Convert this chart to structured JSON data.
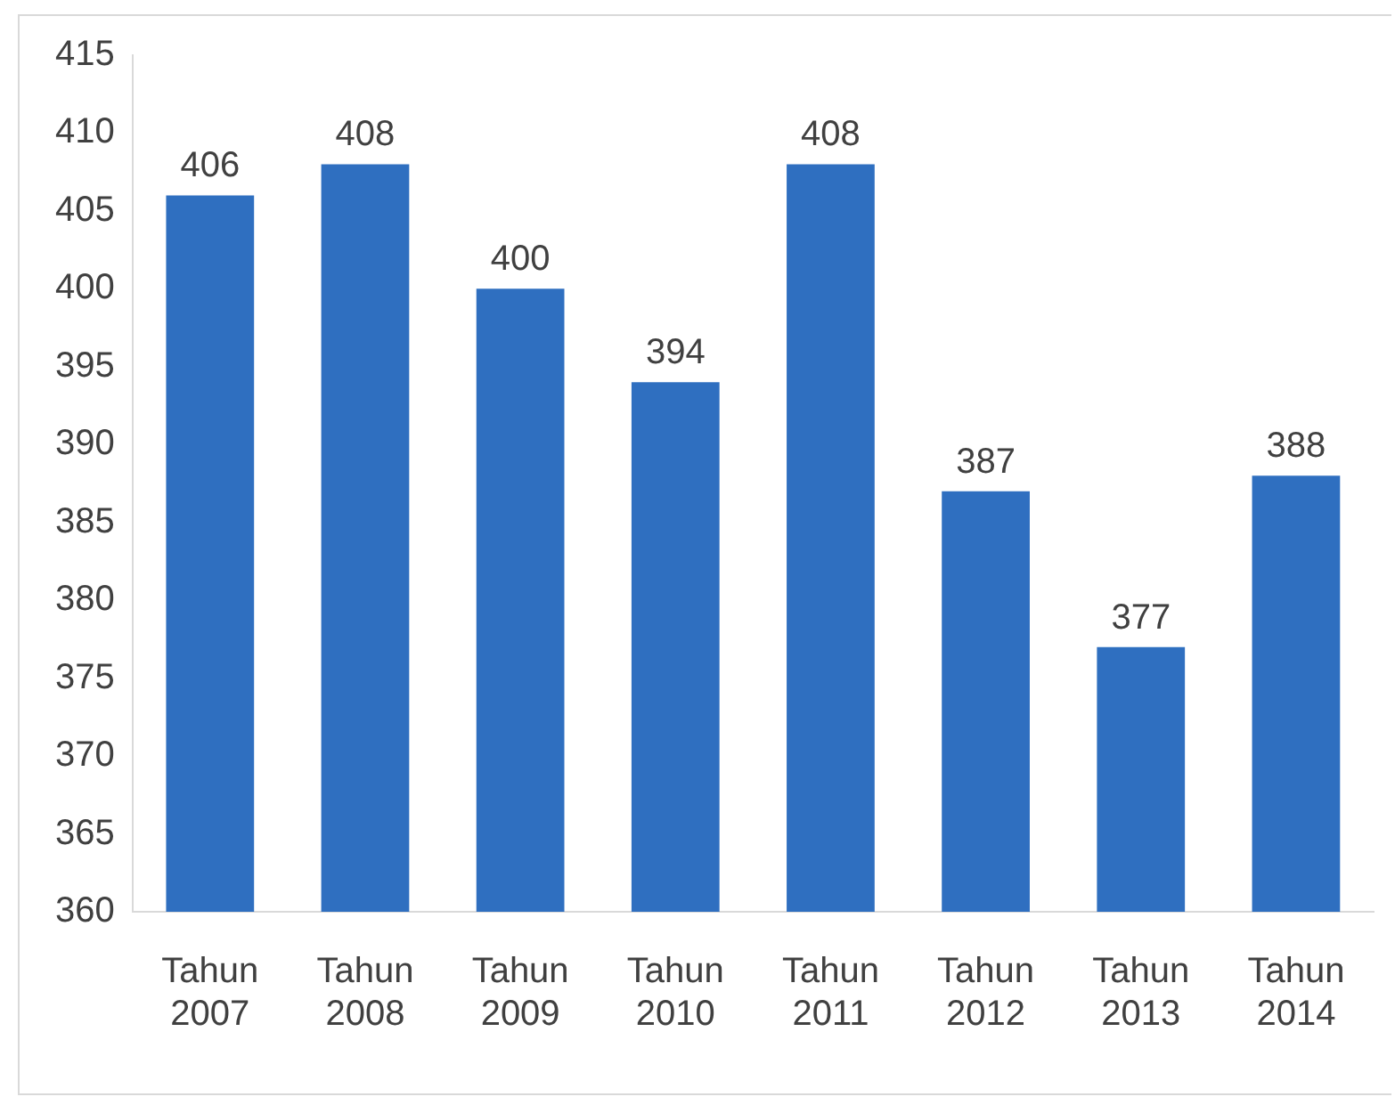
{
  "chart_data": {
    "type": "bar",
    "categories": [
      "Tahun 2007",
      "Tahun 2008",
      "Tahun 2009",
      "Tahun 2010",
      "Tahun 2011",
      "Tahun 2012",
      "Tahun 2013",
      "Tahun 2014"
    ],
    "values": [
      406,
      408,
      400,
      394,
      408,
      387,
      377,
      388
    ],
    "color": "#2f6fc0",
    "ylim": [
      360,
      415
    ],
    "yticks": [
      360,
      365,
      370,
      375,
      380,
      385,
      390,
      395,
      400,
      405,
      410,
      415
    ],
    "grid": false,
    "legend": false,
    "data_labels": true
  }
}
